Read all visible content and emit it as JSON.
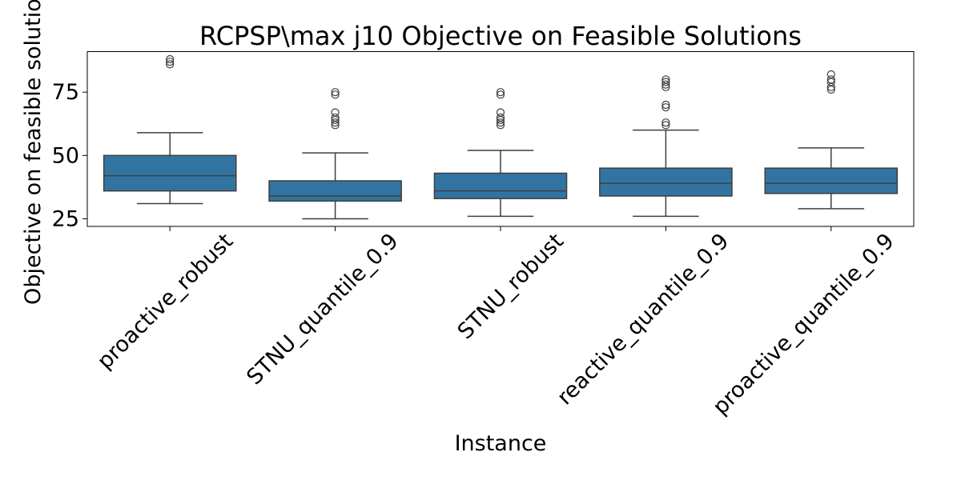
{
  "chart_data": {
    "type": "box",
    "title": "RCPSP\\max j10 Objective on Feasible Solutions",
    "xlabel": "Instance",
    "ylabel": "Objective on feasible solutions",
    "ylim": [
      22,
      91
    ],
    "yticks": [
      25,
      50,
      75
    ],
    "grid": false,
    "box_color": "#3274a1",
    "categories": [
      "proactive_robust",
      "STNU_quantile_0.9",
      "STNU_robust",
      "reactive_quantile_0.9",
      "proactive_quantile_0.9"
    ],
    "boxes": [
      {
        "category": "proactive_robust",
        "whisker_low": 31,
        "q1": 36,
        "median": 42,
        "q3": 50,
        "whisker_high": 59,
        "outliers": [
          86,
          87,
          88
        ]
      },
      {
        "category": "STNU_quantile_0.9",
        "whisker_low": 25,
        "q1": 32,
        "median": 34,
        "q3": 40,
        "whisker_high": 51,
        "outliers": [
          62,
          63,
          64,
          65,
          67,
          74,
          75
        ]
      },
      {
        "category": "STNU_robust",
        "whisker_low": 26,
        "q1": 33,
        "median": 36,
        "q3": 43,
        "whisker_high": 52,
        "outliers": [
          62,
          63,
          64,
          65,
          67,
          74,
          75
        ]
      },
      {
        "category": "reactive_quantile_0.9",
        "whisker_low": 26,
        "q1": 34,
        "median": 39,
        "q3": 45,
        "whisker_high": 60,
        "outliers": [
          62,
          63,
          69,
          70,
          77,
          78,
          79,
          80
        ]
      },
      {
        "category": "proactive_quantile_0.9",
        "whisker_low": 29,
        "q1": 35,
        "median": 39,
        "q3": 45,
        "whisker_high": 53,
        "outliers": [
          76,
          77,
          79,
          80,
          82
        ]
      }
    ]
  }
}
